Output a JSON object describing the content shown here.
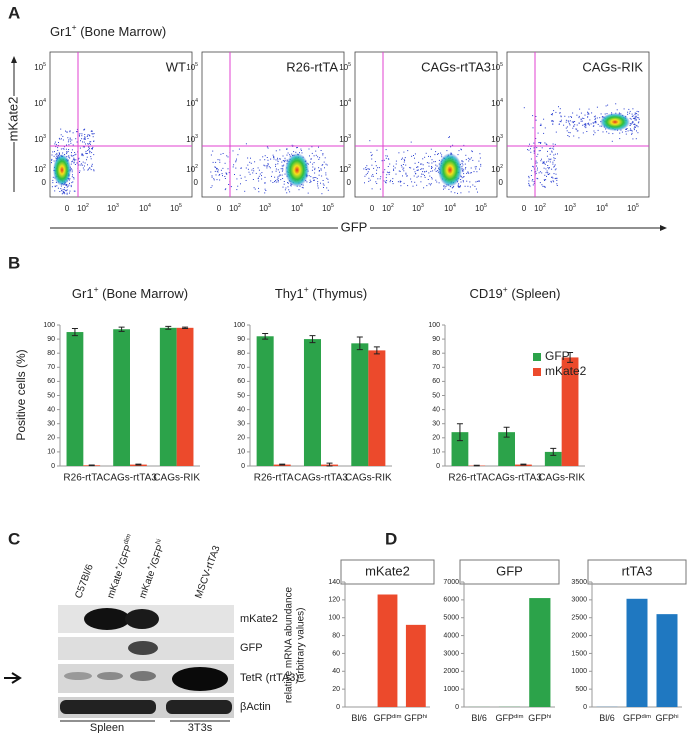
{
  "panel_labels": [
    "A",
    "B",
    "C",
    "D"
  ],
  "flow": {
    "title": {
      "main": "Gr1",
      "sup": "+",
      "rest": " (Bone Marrow)"
    },
    "y_axis_label": "mKate2",
    "x_axis_label": "GFP",
    "yticks": [
      {
        "main": "10",
        "sup": "5"
      },
      {
        "main": "10",
        "sup": "4"
      },
      {
        "main": "10",
        "sup": "3"
      },
      {
        "main": "10",
        "sup": "2"
      },
      {
        "main": "0"
      }
    ],
    "xticks": [
      {
        "main": "0"
      },
      {
        "main": "10",
        "sup": "2"
      },
      {
        "main": "10",
        "sup": "3"
      },
      {
        "main": "10",
        "sup": "4"
      },
      {
        "main": "10",
        "sup": "5"
      }
    ],
    "plots": [
      "WT",
      "R26-rtTA",
      "CAGs-rtTA3",
      "CAGs-RIK"
    ]
  },
  "chart_data": [
    {
      "type": "bar",
      "title": {
        "main": "Gr1",
        "sup": "+",
        "rest": " (Bone Marrow)"
      },
      "ylabel": "Positive cells (%)",
      "categories": [
        "R26-rtTA",
        "CAGs-rtTA3",
        "CAGs-RIK"
      ],
      "series": [
        {
          "name": "GFP",
          "color": "#2ca34a",
          "values": [
            95,
            97,
            98
          ],
          "errors": [
            2.5,
            1.5,
            1
          ]
        },
        {
          "name": "mKate2",
          "color": "#ec4a2c",
          "values": [
            0.5,
            1,
            98
          ],
          "errors": [
            0.2,
            0.3,
            0.5
          ]
        }
      ],
      "ylim": [
        0,
        100
      ],
      "yticks": [
        0,
        10,
        20,
        30,
        40,
        50,
        60,
        70,
        80,
        90,
        100
      ]
    },
    {
      "type": "bar",
      "title": {
        "main": "Thy1",
        "sup": "+",
        "rest": " (Thymus)"
      },
      "categories": [
        "R26-rtTA",
        "CAGs-rtTA3",
        "CAGs-RIK"
      ],
      "series": [
        {
          "name": "GFP",
          "color": "#2ca34a",
          "values": [
            92,
            90,
            87
          ],
          "errors": [
            2,
            2.5,
            4.5
          ]
        },
        {
          "name": "mKate2",
          "color": "#ec4a2c",
          "values": [
            1,
            1,
            82
          ],
          "errors": [
            0.3,
            1,
            2.5
          ]
        }
      ],
      "ylim": [
        0,
        100
      ],
      "yticks": [
        0,
        10,
        20,
        30,
        40,
        50,
        60,
        70,
        80,
        90,
        100
      ]
    },
    {
      "type": "bar",
      "title": {
        "main": "CD19",
        "sup": "+",
        "rest": " (Spleen)"
      },
      "legend": "upper-right",
      "categories": [
        "R26-rtTA",
        "CAGs-rtTA3",
        "CAGs-RIK"
      ],
      "series": [
        {
          "name": "GFP",
          "color": "#2ca34a",
          "values": [
            24,
            24,
            10
          ],
          "errors": [
            6,
            3.5,
            2.5
          ]
        },
        {
          "name": "mKate2",
          "color": "#ec4a2c",
          "values": [
            0.3,
            1,
            77
          ],
          "errors": [
            0.2,
            0.3,
            3.5
          ]
        }
      ],
      "ylim": [
        0,
        100
      ],
      "yticks": [
        0,
        10,
        20,
        30,
        40,
        50,
        60,
        70,
        80,
        90,
        100
      ]
    },
    {
      "type": "bar",
      "title": "mKate2",
      "ylabel": [
        "relative mRNA abundance",
        "(arbitrary values)"
      ],
      "categories": [
        {
          "main": "Bl/6"
        },
        {
          "main": "GFP",
          "sup": "dim"
        },
        {
          "main": "GFP",
          "sup": "hi"
        }
      ],
      "series": [
        {
          "name": "mKate2",
          "color": "#ec4a2c",
          "values": [
            0,
            126,
            92
          ]
        }
      ],
      "ylim": [
        0,
        140
      ],
      "yticks": [
        0,
        20,
        40,
        60,
        80,
        100,
        120,
        140
      ]
    },
    {
      "type": "bar",
      "title": "GFP",
      "categories": [
        {
          "main": "Bl/6"
        },
        {
          "main": "GFP",
          "sup": "dim"
        },
        {
          "main": "GFP",
          "sup": "hi"
        }
      ],
      "series": [
        {
          "name": "GFP",
          "color": "#2ca34a",
          "values": [
            5,
            10,
            6100
          ]
        }
      ],
      "ylim": [
        0,
        7000
      ],
      "yticks": [
        0,
        1000,
        2000,
        3000,
        4000,
        5000,
        6000,
        7000
      ]
    },
    {
      "type": "bar",
      "title": "rtTA3",
      "categories": [
        {
          "main": "Bl/6"
        },
        {
          "main": "GFP",
          "sup": "dim"
        },
        {
          "main": "GFP",
          "sup": "hi"
        }
      ],
      "series": [
        {
          "name": "rtTA3",
          "color": "#1f78c1",
          "values": [
            5,
            3030,
            2600
          ]
        }
      ],
      "ylim": [
        0,
        3500
      ],
      "yticks": [
        0,
        500,
        1000,
        1500,
        2000,
        2500,
        3000,
        3500
      ]
    }
  ],
  "blot": {
    "lanes": [
      {
        "main": "C57Bl/6"
      },
      {
        "main": "mKate",
        "sup": "+",
        "rest": "/GFP",
        "sup2": "dim"
      },
      {
        "main": "mKate",
        "sup": "+",
        "rest": "/GFP",
        "sup2": "hi"
      },
      {
        "main": "MSCV-rtTA3"
      }
    ],
    "rows": [
      "mKate2",
      "GFP",
      "TetR (rtTA3)",
      "βActin"
    ],
    "groups": [
      "Spleen",
      "3T3s"
    ]
  }
}
